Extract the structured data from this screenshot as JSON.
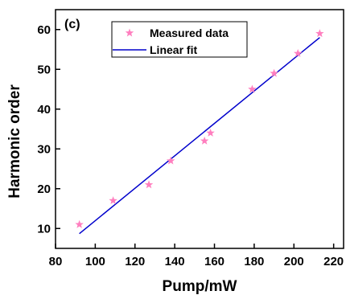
{
  "chart_data": {
    "type": "scatter",
    "panel_label": "(c)",
    "xlabel": "Pump/mW",
    "ylabel": "Harmonic order",
    "xlim": [
      80,
      225
    ],
    "ylim": [
      5,
      65
    ],
    "xticks": [
      80,
      100,
      120,
      140,
      160,
      180,
      200,
      220
    ],
    "yticks": [
      10,
      20,
      30,
      40,
      50,
      60
    ],
    "grid": false,
    "legend_position": "top-left",
    "series": [
      {
        "name": "Measured data",
        "kind": "scatter",
        "marker": "star",
        "color": "#ff7fbf",
        "x": [
          92,
          109,
          127,
          138,
          155,
          158,
          179,
          190,
          202,
          213
        ],
        "y": [
          11,
          17,
          21,
          27,
          32,
          34,
          45,
          49,
          54,
          59
        ]
      },
      {
        "name": "Linear fit",
        "kind": "line",
        "color": "#0000cc",
        "x": [
          92,
          213
        ],
        "y": [
          8.7,
          58
        ]
      }
    ]
  }
}
